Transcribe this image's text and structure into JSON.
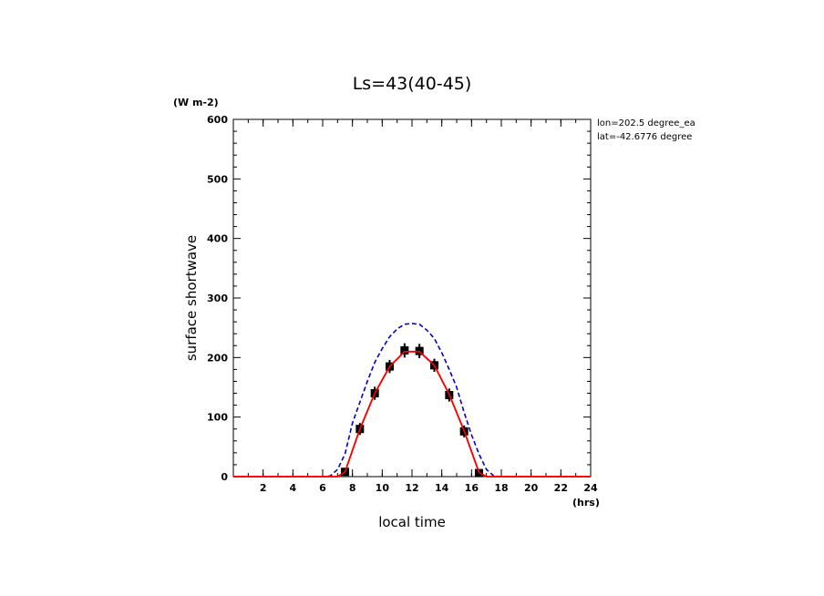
{
  "chart_data": {
    "type": "line",
    "title": "Ls=43(40-45)",
    "xlabel": "local time",
    "xunit": "(hrs)",
    "ylabel": "surface shortwave",
    "yunit": "(W m-2)",
    "annotations": [
      "lon=202.5 degree_ea",
      "lat=-42.6776 degree"
    ],
    "xlim": [
      0,
      24
    ],
    "ylim": [
      0,
      600
    ],
    "x_ticks": [
      2,
      4,
      6,
      8,
      10,
      12,
      14,
      16,
      18,
      20,
      22,
      24
    ],
    "y_ticks": [
      0,
      100,
      200,
      300,
      400,
      500,
      600
    ],
    "series": [
      {
        "style": "dashed",
        "color": "#0000cc",
        "x": [
          0,
          1,
          2,
          3,
          4,
          5,
          6,
          6.5,
          7,
          7.5,
          8,
          8.5,
          9,
          9.5,
          10,
          10.5,
          11,
          11.5,
          12,
          12.5,
          13,
          13.5,
          14,
          14.5,
          15,
          15.5,
          16,
          16.5,
          17,
          17.5,
          18,
          19,
          20,
          21,
          22,
          23,
          24
        ],
        "y": [
          0,
          0,
          0,
          0,
          0,
          0,
          0,
          1,
          12,
          38,
          90,
          125,
          160,
          192,
          215,
          235,
          248,
          256,
          257,
          256,
          246,
          232,
          208,
          180,
          150,
          108,
          70,
          38,
          12,
          1,
          0,
          0,
          0,
          0,
          0,
          0,
          0
        ]
      },
      {
        "style": "solid",
        "color": "#ff0000",
        "x": [
          0,
          1,
          2,
          3,
          4,
          5,
          6,
          7,
          7.5,
          8.5,
          9.5,
          10.5,
          11.5,
          12.5,
          13.5,
          14.5,
          15.5,
          16.5,
          17,
          18,
          19,
          20,
          21,
          22,
          23,
          24
        ],
        "y": [
          0,
          0,
          0,
          0,
          0,
          0,
          0,
          0,
          8,
          80,
          140,
          185,
          210,
          210,
          187,
          138,
          77,
          7,
          0,
          0,
          0,
          0,
          0,
          0,
          0,
          0
        ]
      },
      {
        "style": "markers",
        "color": "#000000",
        "x": [
          7.5,
          8.5,
          9.5,
          10.5,
          11.5,
          12.5,
          13.5,
          14.5,
          15.5,
          16.5
        ],
        "y": [
          8,
          80,
          140,
          185,
          212,
          211,
          187,
          137,
          76,
          6
        ],
        "err": [
          6,
          10,
          11,
          11,
          12,
          12,
          11,
          11,
          10,
          6
        ]
      }
    ]
  }
}
